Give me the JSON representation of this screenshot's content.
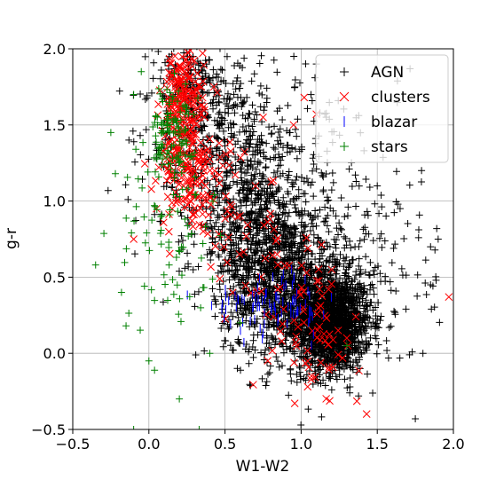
{
  "chart_data": {
    "type": "scatter",
    "title": "",
    "xlabel": "W1-W2",
    "ylabel": "g-r",
    "xlim": [
      -0.5,
      2.0
    ],
    "ylim": [
      -0.5,
      2.0
    ],
    "xticks": [
      "−0.5",
      "0.0",
      "0.5",
      "1.0",
      "1.5",
      "2.0"
    ],
    "yticks": [
      "−0.5",
      "0.0",
      "0.5",
      "1.0",
      "1.5",
      "2.0"
    ],
    "grid": true,
    "legend_position": "top-right",
    "series": [
      {
        "name": "AGN",
        "marker": "+",
        "color": "#000000",
        "clusters": [
          {
            "cx": 1.2,
            "cy": 0.2,
            "sx": 0.13,
            "sy": 0.16,
            "n": 1500
          },
          {
            "cx": 0.9,
            "cy": 0.45,
            "sx": 0.2,
            "sy": 0.25,
            "n": 900
          },
          {
            "cx": 0.7,
            "cy": 0.85,
            "sx": 0.2,
            "sy": 0.3,
            "n": 650
          },
          {
            "cx": 0.4,
            "cy": 1.35,
            "sx": 0.2,
            "sy": 0.3,
            "n": 350
          },
          {
            "cx": 0.3,
            "cy": 1.8,
            "sx": 0.15,
            "sy": 0.15,
            "n": 150
          },
          {
            "cx": 1.4,
            "cy": 0.6,
            "sx": 0.25,
            "sy": 0.35,
            "n": 140
          },
          {
            "cx": 1.0,
            "cy": 1.3,
            "sx": 0.35,
            "sy": 0.35,
            "n": 120
          }
        ],
        "points": [
          [
            1.75,
            -0.43
          ],
          [
            1.8,
            0.0
          ],
          [
            1.85,
            0.7
          ],
          [
            1.85,
            0.45
          ],
          [
            1.65,
            0.95
          ],
          [
            1.9,
            0.75
          ],
          [
            1.1,
            1.9
          ],
          [
            1.5,
            1.1
          ]
        ]
      },
      {
        "name": "clusters",
        "marker": "x",
        "color": "#ff0000",
        "clusters": [
          {
            "cx": 0.22,
            "cy": 1.65,
            "sx": 0.07,
            "sy": 0.18,
            "n": 200
          },
          {
            "cx": 0.25,
            "cy": 1.2,
            "sx": 0.09,
            "sy": 0.18,
            "n": 140
          },
          {
            "cx": 0.45,
            "cy": 1.05,
            "sx": 0.12,
            "sy": 0.2,
            "n": 40
          },
          {
            "cx": 0.9,
            "cy": 0.3,
            "sx": 0.15,
            "sy": 0.25,
            "n": 45
          },
          {
            "cx": 1.15,
            "cy": 0.1,
            "sx": 0.12,
            "sy": 0.2,
            "n": 40
          },
          {
            "cx": 0.7,
            "cy": 0.75,
            "sx": 0.15,
            "sy": 0.15,
            "n": 20
          }
        ],
        "points": [
          [
            1.97,
            0.37
          ],
          [
            1.02,
            1.68
          ],
          [
            1.1,
            1.57
          ],
          [
            -0.1,
            0.75
          ],
          [
            0.05,
            0.95
          ],
          [
            0.75,
            1.55
          ],
          [
            0.95,
            1.5
          ],
          [
            0.7,
            1.1
          ],
          [
            1.2,
            0.55
          ],
          [
            1.3,
            0.1
          ],
          [
            0.55,
            0.4
          ]
        ]
      },
      {
        "name": "blazar",
        "marker": "|",
        "color": "#0000ff",
        "clusters": [
          {
            "cx": 0.78,
            "cy": 0.35,
            "sx": 0.18,
            "sy": 0.1,
            "n": 70
          },
          {
            "cx": 1.0,
            "cy": 0.3,
            "sx": 0.12,
            "sy": 0.1,
            "n": 20
          }
        ],
        "points": []
      },
      {
        "name": "stars",
        "marker": "+",
        "color": "#008000",
        "clusters": [
          {
            "cx": 0.15,
            "cy": 1.45,
            "sx": 0.08,
            "sy": 0.15,
            "n": 120
          },
          {
            "cx": 0.1,
            "cy": 0.7,
            "sx": 0.15,
            "sy": 0.3,
            "n": 70
          }
        ],
        "points": [
          [
            -0.35,
            0.58
          ],
          [
            -0.25,
            1.45
          ],
          [
            -0.22,
            1.18
          ],
          [
            -0.18,
            0.4
          ],
          [
            -0.15,
            0.18
          ],
          [
            -0.1,
            -0.5
          ],
          [
            0.0,
            -0.05
          ],
          [
            0.2,
            -0.3
          ],
          [
            0.33,
            -0.5
          ],
          [
            0.4,
            0.0
          ],
          [
            -0.05,
            1.85
          ],
          [
            -0.1,
            1.7
          ],
          [
            1.3,
            0.05
          ],
          [
            0.6,
            0.2
          ]
        ]
      }
    ]
  }
}
